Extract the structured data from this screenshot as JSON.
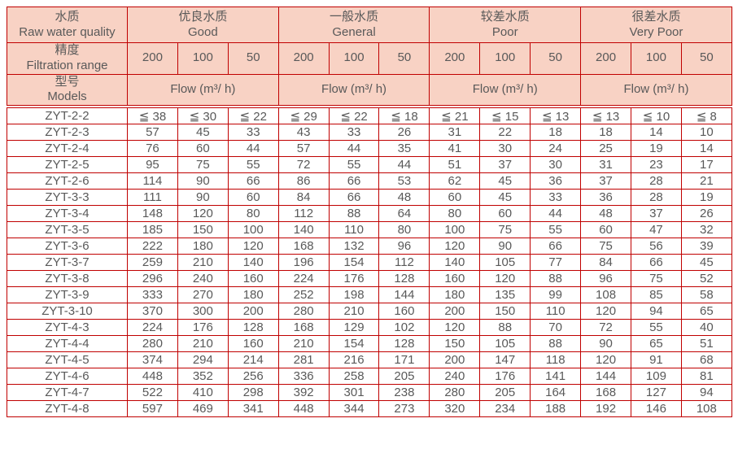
{
  "colors": {
    "border_red": "#c00000",
    "header_pink": "#f8d2c4",
    "text_gray": "#595959"
  },
  "header": {
    "corner": {
      "zh": "水质",
      "en": "Raw water quality"
    },
    "groups": [
      {
        "zh": "优良水质",
        "en": "Good"
      },
      {
        "zh": "一般水质",
        "en": "General"
      },
      {
        "zh": "较差水质",
        "en": "Poor"
      },
      {
        "zh": "很差水质",
        "en": "Very Poor"
      }
    ],
    "precision": {
      "zh": "精度",
      "en": "Filtration range"
    },
    "filtration_values": [
      "200",
      "100",
      "50"
    ],
    "models": {
      "zh": "型号",
      "en": "Models"
    },
    "flow_label": "Flow (m³/ h)"
  },
  "rows": [
    {
      "model": "ZYT-2-2",
      "values": [
        "≦ 38",
        "≦ 30",
        "≦ 22",
        "≦ 29",
        "≦ 22",
        "≦ 18",
        "≦ 21",
        "≦ 15",
        "≦ 13",
        "≦ 13",
        "≦ 10",
        "≦ 8"
      ]
    },
    {
      "model": "ZYT-2-3",
      "values": [
        "57",
        "45",
        "33",
        "43",
        "33",
        "26",
        "31",
        "22",
        "18",
        "18",
        "14",
        "10"
      ]
    },
    {
      "model": "ZYT-2-4",
      "values": [
        "76",
        "60",
        "44",
        "57",
        "44",
        "35",
        "41",
        "30",
        "24",
        "25",
        "19",
        "14"
      ]
    },
    {
      "model": "ZYT-2-5",
      "values": [
        "95",
        "75",
        "55",
        "72",
        "55",
        "44",
        "51",
        "37",
        "30",
        "31",
        "23",
        "17"
      ]
    },
    {
      "model": "ZYT-2-6",
      "values": [
        "114",
        "90",
        "66",
        "86",
        "66",
        "53",
        "62",
        "45",
        "36",
        "37",
        "28",
        "21"
      ]
    },
    {
      "model": "ZYT-3-3",
      "values": [
        "111",
        "90",
        "60",
        "84",
        "66",
        "48",
        "60",
        "45",
        "33",
        "36",
        "28",
        "19"
      ]
    },
    {
      "model": "ZYT-3-4",
      "values": [
        "148",
        "120",
        "80",
        "112",
        "88",
        "64",
        "80",
        "60",
        "44",
        "48",
        "37",
        "26"
      ]
    },
    {
      "model": "ZYT-3-5",
      "values": [
        "185",
        "150",
        "100",
        "140",
        "110",
        "80",
        "100",
        "75",
        "55",
        "60",
        "47",
        "32"
      ]
    },
    {
      "model": "ZYT-3-6",
      "values": [
        "222",
        "180",
        "120",
        "168",
        "132",
        "96",
        "120",
        "90",
        "66",
        "75",
        "56",
        "39"
      ]
    },
    {
      "model": "ZYT-3-7",
      "values": [
        "259",
        "210",
        "140",
        "196",
        "154",
        "112",
        "140",
        "105",
        "77",
        "84",
        "66",
        "45"
      ]
    },
    {
      "model": "ZYT-3-8",
      "values": [
        "296",
        "240",
        "160",
        "224",
        "176",
        "128",
        "160",
        "120",
        "88",
        "96",
        "75",
        "52"
      ]
    },
    {
      "model": "ZYT-3-9",
      "values": [
        "333",
        "270",
        "180",
        "252",
        "198",
        "144",
        "180",
        "135",
        "99",
        "108",
        "85",
        "58"
      ]
    },
    {
      "model": "ZYT-3-10",
      "values": [
        "370",
        "300",
        "200",
        "280",
        "210",
        "160",
        "200",
        "150",
        "110",
        "120",
        "94",
        "65"
      ]
    },
    {
      "model": "ZYT-4-3",
      "values": [
        "224",
        "176",
        "128",
        "168",
        "129",
        "102",
        "120",
        "88",
        "70",
        "72",
        "55",
        "40"
      ]
    },
    {
      "model": "ZYT-4-4",
      "values": [
        "280",
        "210",
        "160",
        "210",
        "154",
        "128",
        "150",
        "105",
        "88",
        "90",
        "65",
        "51"
      ]
    },
    {
      "model": "ZYT-4-5",
      "values": [
        "374",
        "294",
        "214",
        "281",
        "216",
        "171",
        "200",
        "147",
        "118",
        "120",
        "91",
        "68"
      ]
    },
    {
      "model": "ZYT-4-6",
      "values": [
        "448",
        "352",
        "256",
        "336",
        "258",
        "205",
        "240",
        "176",
        "141",
        "144",
        "109",
        "81"
      ]
    },
    {
      "model": "ZYT-4-7",
      "values": [
        "522",
        "410",
        "298",
        "392",
        "301",
        "238",
        "280",
        "205",
        "164",
        "168",
        "127",
        "94"
      ]
    },
    {
      "model": "ZYT-4-8",
      "values": [
        "597",
        "469",
        "341",
        "448",
        "344",
        "273",
        "320",
        "234",
        "188",
        "192",
        "146",
        "108"
      ]
    }
  ]
}
